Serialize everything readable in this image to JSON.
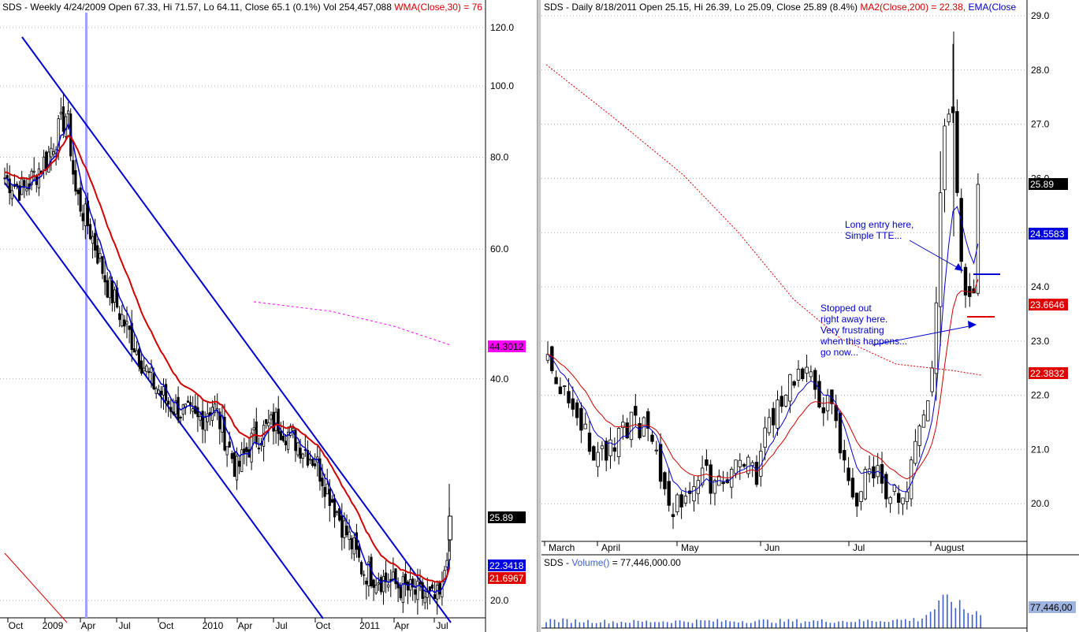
{
  "left": {
    "header": {
      "symbol": "SDS - Weekly 4/24/2009 Open 67.33, Hi 71.57, Lo 64.11, Close 65.1 (0.1%) Vol 254,457,088",
      "indicator": "WMA(Close,30) = 76"
    },
    "y_ticks": [
      "120.0",
      "100.0",
      "80.0",
      "60.0",
      "40.0",
      "20.0"
    ],
    "x_ticks": [
      "Oct",
      "2009",
      "Apr",
      "Jul",
      "Oct",
      "2010",
      "Apr",
      "Jul",
      "Oct",
      "2011",
      "Apr",
      "Jul"
    ],
    "price_tags": [
      {
        "label": "44.3012",
        "bg": "#ff00ff",
        "fg": "#000000"
      },
      {
        "label": "25.89",
        "bg": "#000000",
        "fg": "#ffffff"
      },
      {
        "label": "22.3418",
        "bg": "#0000e0",
        "fg": "#ffffff"
      },
      {
        "label": "21.6967",
        "bg": "#e00000",
        "fg": "#ffffff"
      }
    ]
  },
  "right": {
    "header": {
      "symbol": "SDS - Daily 8/18/2011 Open 25.15, Hi 26.39, Lo 25.09, Close 25.89 (8.4%)",
      "ma": "MA2(Close,200) = 22.38,",
      "ema": "EMA(Close"
    },
    "y_ticks": [
      "29.0",
      "28.0",
      "27.0",
      "26.0",
      "25.0",
      "24.0",
      "23.0",
      "22.0",
      "21.0",
      "20.0"
    ],
    "x_ticks": [
      "March",
      "April",
      "May",
      "Jun",
      "Jul",
      "August"
    ],
    "price_tags": [
      {
        "label": "25.89",
        "bg": "#000000",
        "fg": "#ffffff"
      },
      {
        "label": "24.5583",
        "bg": "#0000e0",
        "fg": "#ffffff"
      },
      {
        "label": "23.6646",
        "bg": "#e00000",
        "fg": "#ffffff"
      },
      {
        "label": "22.3832",
        "bg": "#e00000",
        "fg": "#ffffff"
      }
    ],
    "annotations": {
      "entry": [
        "Long entry here,",
        "Simple TTE..."
      ],
      "stopped": [
        "Stopped out",
        "right away here.",
        "Very frustrating",
        "when this happens...",
        "go now..."
      ]
    },
    "volume": {
      "header_prefix": "SDS - ",
      "header_indicator": "Volume()",
      "header_value": " = 77,446,000.00",
      "tag": "77,446,00"
    }
  },
  "chart_data": [
    {
      "type": "candlestick",
      "title": "SDS - Weekly 4/24/2009",
      "scale": "log",
      "ylim": [
        18,
        122
      ],
      "x_labels": [
        "Oct",
        "2009",
        "Apr",
        "Jul",
        "Oct",
        "2010",
        "Apr",
        "Jul",
        "Oct",
        "2011",
        "Apr",
        "Jul"
      ],
      "close_path": [
        {
          "x": "Oct 2008",
          "y": 75
        },
        {
          "x": "2009",
          "y": 72
        },
        {
          "x": "Mar 2009",
          "y": 88
        },
        {
          "x": "Apr 2009",
          "y": 65
        },
        {
          "x": "Jul 2009",
          "y": 52
        },
        {
          "x": "Oct 2009",
          "y": 39
        },
        {
          "x": "2010",
          "y": 38
        },
        {
          "x": "Apr 2010",
          "y": 31
        },
        {
          "x": "Jul 2010",
          "y": 36
        },
        {
          "x": "Oct 2010",
          "y": 31
        },
        {
          "x": "2011",
          "y": 22
        },
        {
          "x": "Apr 2011",
          "y": 21
        },
        {
          "x": "Jul 2011",
          "y": 20
        },
        {
          "x": "Aug 2011",
          "y": 25.89
        }
      ],
      "series": [
        {
          "name": "WMA(Close,30)",
          "last": 21.6967,
          "color": "#e00000"
        },
        {
          "name": "EMA",
          "last": 22.3418,
          "color": "#0000e0"
        }
      ],
      "channel": "descending channel (two parallel blue trendlines)"
    },
    {
      "type": "candlestick",
      "title": "SDS - Daily 8/18/2011",
      "scale": "linear",
      "ylim": [
        19.2,
        29.2
      ],
      "x_labels": [
        "March",
        "April",
        "May",
        "Jun",
        "Jul",
        "August"
      ],
      "ohlc_last": {
        "open": 25.15,
        "high": 26.39,
        "low": 25.09,
        "close": 25.89
      },
      "close_path": [
        {
          "x": "Mar 1",
          "y": 22.7
        },
        {
          "x": "Mar 15",
          "y": 21.8
        },
        {
          "x": "Apr 1",
          "y": 20.8
        },
        {
          "x": "Apr 20",
          "y": 21.3
        },
        {
          "x": "May 5",
          "y": 19.9
        },
        {
          "x": "May 20",
          "y": 20.4
        },
        {
          "x": "Jun 1",
          "y": 20.8
        },
        {
          "x": "Jun 20",
          "y": 22.2
        },
        {
          "x": "Jul 1",
          "y": 21.9
        },
        {
          "x": "Jul 10",
          "y": 20.2
        },
        {
          "x": "Jul 25",
          "y": 19.9
        },
        {
          "x": "Aug 1",
          "y": 21.2
        },
        {
          "x": "Aug 8",
          "y": 28.2
        },
        {
          "x": "Aug 12",
          "y": 24.2
        },
        {
          "x": "Aug 18",
          "y": 25.89
        }
      ],
      "series": [
        {
          "name": "MA2(Close,200)",
          "last": 22.38,
          "color": "#e00000",
          "style": "dotted"
        },
        {
          "name": "EMA(Close",
          "last": 24.5583,
          "color": "#0000e0"
        },
        {
          "name": "MA (red)",
          "last": 23.6646,
          "color": "#e00000"
        }
      ],
      "volume": {
        "last": 77446000,
        "name": "Volume()"
      }
    }
  ]
}
